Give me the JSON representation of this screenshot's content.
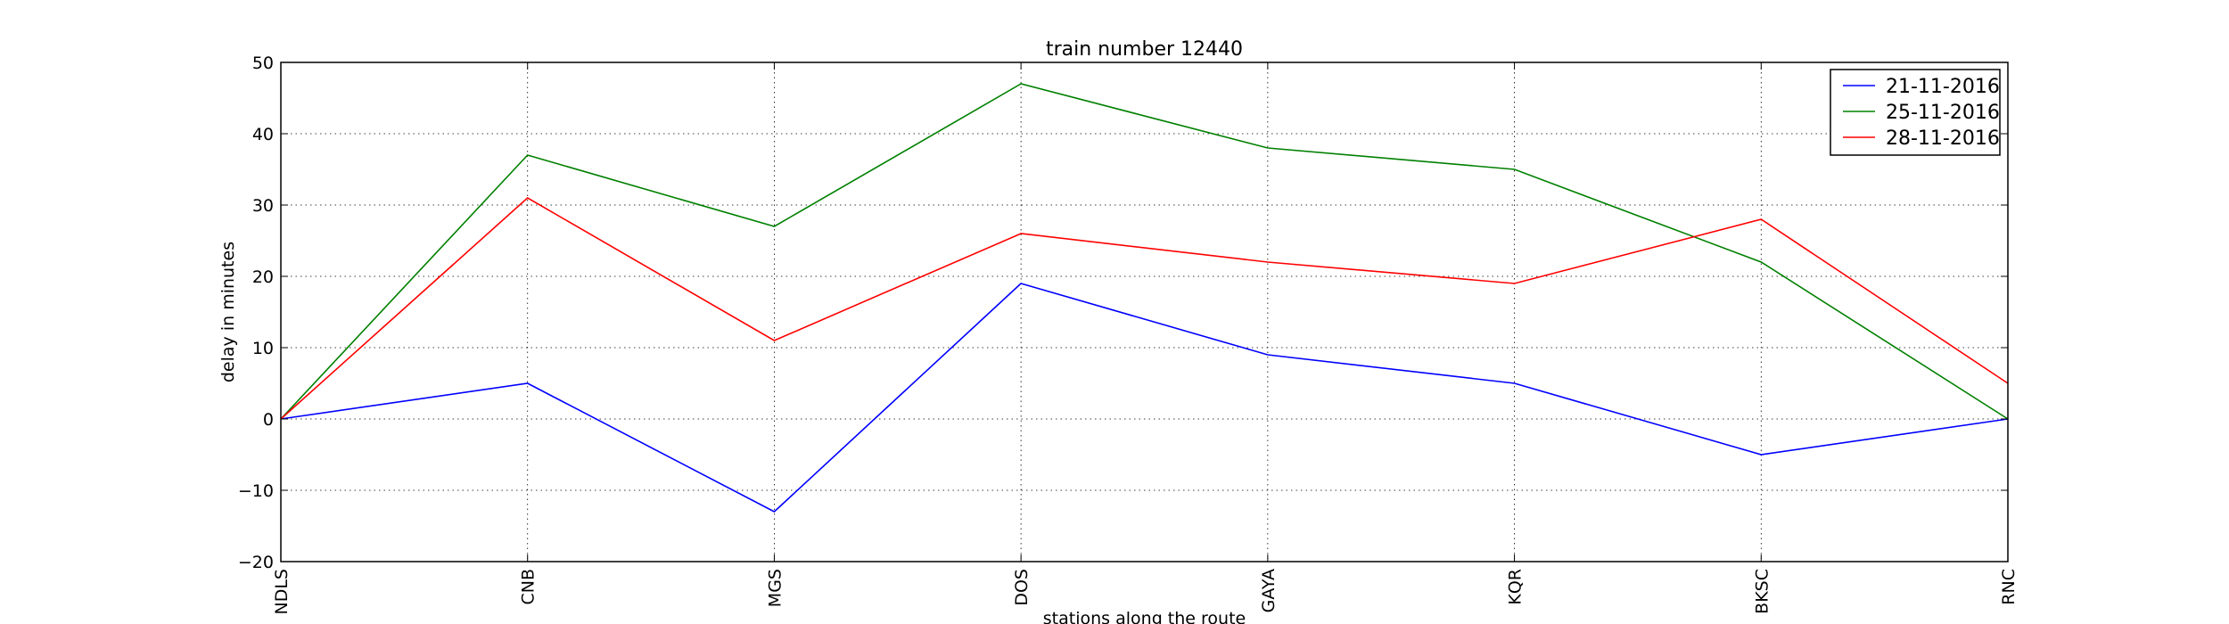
{
  "chart_data": {
    "type": "line",
    "title": "train number 12440",
    "xlabel": "stations along the route",
    "ylabel": "delay in minutes",
    "categories": [
      "NDLS",
      "CNB",
      "MGS",
      "DOS",
      "GAYA",
      "KQR",
      "BKSC",
      "RNC"
    ],
    "ylim": [
      -20,
      50
    ],
    "yticks": [
      -20,
      -10,
      0,
      10,
      20,
      30,
      40,
      50
    ],
    "grid": true,
    "legend_position": "top-right",
    "series": [
      {
        "name": "21-11-2016",
        "color": "#0000ff",
        "values": [
          0,
          5,
          -13,
          19,
          9,
          5,
          -5,
          0
        ]
      },
      {
        "name": "25-11-2016",
        "color": "#008000",
        "values": [
          0,
          37,
          27,
          47,
          38,
          35,
          22,
          0
        ]
      },
      {
        "name": "28-11-2016",
        "color": "#ff0000",
        "values": [
          0,
          31,
          11,
          26,
          22,
          19,
          28,
          5
        ]
      }
    ]
  }
}
